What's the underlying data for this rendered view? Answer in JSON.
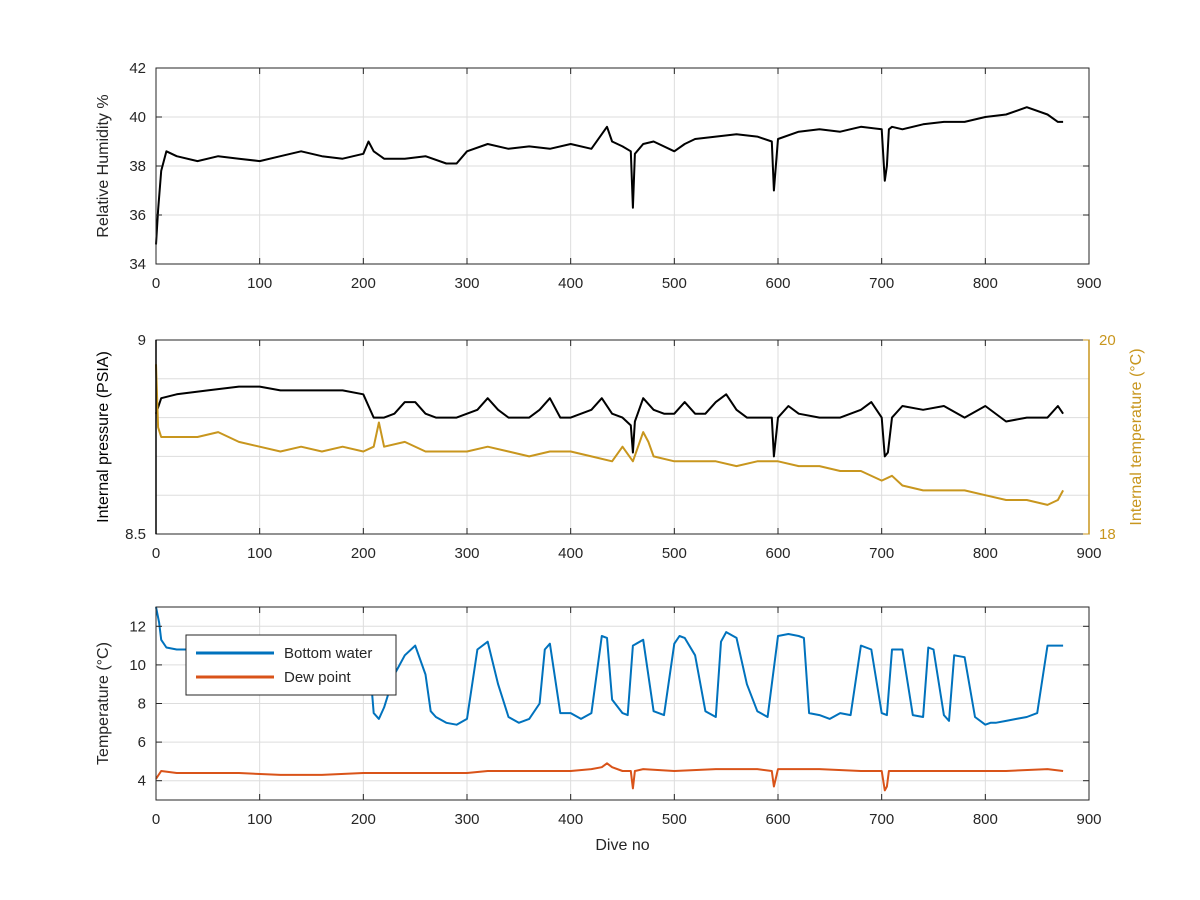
{
  "figure": {
    "background": "#ffffff"
  },
  "colors": {
    "black": "#000000",
    "orange_axis": "#c8961e",
    "blue": "#0072bd",
    "red": "#d95319",
    "grid": "#dddddd",
    "axis": "#262626",
    "label": "#262626"
  },
  "chart_data": [
    {
      "type": "line",
      "panel": "humidity",
      "xlim": [
        0,
        900
      ],
      "ylim": [
        34,
        42
      ],
      "xticks": [
        "0",
        "100",
        "200",
        "300",
        "400",
        "500",
        "600",
        "700",
        "800",
        "900"
      ],
      "yticks": [
        "34",
        "36",
        "38",
        "40",
        "42"
      ],
      "xlabel": "",
      "ylabel": "Relative Humidity %",
      "grid": true,
      "series": [
        {
          "color": "#000000",
          "x": [
            0,
            2,
            5,
            10,
            20,
            40,
            60,
            80,
            100,
            120,
            140,
            160,
            180,
            200,
            205,
            210,
            220,
            240,
            260,
            280,
            290,
            300,
            320,
            340,
            360,
            380,
            400,
            420,
            435,
            440,
            450,
            458,
            460,
            462,
            470,
            480,
            500,
            510,
            520,
            540,
            560,
            580,
            594,
            596,
            600,
            620,
            640,
            660,
            680,
            700,
            703,
            705,
            707,
            710,
            720,
            740,
            760,
            780,
            800,
            820,
            840,
            860,
            870,
            875
          ],
          "y": [
            34.8,
            36.2,
            37.8,
            38.6,
            38.4,
            38.2,
            38.4,
            38.3,
            38.2,
            38.4,
            38.6,
            38.4,
            38.3,
            38.5,
            39.0,
            38.6,
            38.3,
            38.3,
            38.4,
            38.1,
            38.1,
            38.6,
            38.9,
            38.7,
            38.8,
            38.7,
            38.9,
            38.7,
            39.6,
            39.0,
            38.8,
            38.6,
            36.3,
            38.5,
            38.9,
            39.0,
            38.6,
            38.9,
            39.1,
            39.2,
            39.3,
            39.2,
            39.0,
            37.0,
            39.1,
            39.4,
            39.5,
            39.4,
            39.6,
            39.5,
            37.4,
            38.0,
            39.5,
            39.6,
            39.5,
            39.7,
            39.8,
            39.8,
            40.0,
            40.1,
            40.4,
            40.1,
            39.8,
            39.8
          ]
        }
      ]
    },
    {
      "type": "line",
      "panel": "pressure",
      "xlim": [
        0,
        900
      ],
      "ylim": [
        8.5,
        9
      ],
      "ylim_right": [
        18,
        20
      ],
      "xticks": [
        "0",
        "100",
        "200",
        "300",
        "400",
        "500",
        "600",
        "700",
        "800",
        "900"
      ],
      "yticks": [
        "8.5",
        "9"
      ],
      "yticks_right": [
        "18",
        "20"
      ],
      "xlabel": "",
      "ylabel": "Internal pressure (PSIA)",
      "ylabel_right": "Internal temperature (°C)",
      "grid": true,
      "series": [
        {
          "color": "#000000",
          "axis": "left",
          "x": [
            0,
            5,
            20,
            50,
            80,
            100,
            120,
            150,
            180,
            200,
            210,
            220,
            230,
            240,
            250,
            260,
            270,
            290,
            310,
            320,
            330,
            340,
            360,
            370,
            380,
            390,
            400,
            420,
            430,
            440,
            450,
            458,
            460,
            462,
            470,
            480,
            490,
            500,
            510,
            520,
            530,
            540,
            550,
            560,
            570,
            580,
            594,
            596,
            600,
            610,
            620,
            640,
            660,
            680,
            690,
            700,
            703,
            706,
            710,
            720,
            740,
            760,
            780,
            800,
            820,
            840,
            860,
            870,
            875
          ],
          "y": [
            8.81,
            8.85,
            8.86,
            8.87,
            8.88,
            8.88,
            8.87,
            8.87,
            8.87,
            8.86,
            8.8,
            8.8,
            8.81,
            8.84,
            8.84,
            8.81,
            8.8,
            8.8,
            8.82,
            8.85,
            8.82,
            8.8,
            8.8,
            8.82,
            8.85,
            8.8,
            8.8,
            8.82,
            8.85,
            8.81,
            8.8,
            8.78,
            8.71,
            8.79,
            8.85,
            8.82,
            8.81,
            8.81,
            8.84,
            8.81,
            8.81,
            8.84,
            8.86,
            8.82,
            8.8,
            8.8,
            8.8,
            8.7,
            8.8,
            8.83,
            8.81,
            8.8,
            8.8,
            8.82,
            8.84,
            8.8,
            8.7,
            8.71,
            8.8,
            8.83,
            8.82,
            8.83,
            8.8,
            8.83,
            8.79,
            8.8,
            8.8,
            8.83,
            8.81
          ]
        },
        {
          "color": "#c8961e",
          "axis": "right",
          "x": [
            0,
            2,
            5,
            20,
            40,
            60,
            80,
            100,
            120,
            140,
            160,
            180,
            200,
            210,
            215,
            220,
            240,
            260,
            280,
            300,
            320,
            340,
            360,
            380,
            400,
            420,
            440,
            450,
            460,
            470,
            475,
            480,
            500,
            520,
            540,
            560,
            580,
            600,
            620,
            640,
            660,
            680,
            700,
            710,
            720,
            740,
            760,
            780,
            800,
            820,
            840,
            860,
            870,
            875
          ],
          "y": [
            19.75,
            19.1,
            19.0,
            19.0,
            19.0,
            19.05,
            18.95,
            18.9,
            18.85,
            18.9,
            18.85,
            18.9,
            18.85,
            18.9,
            19.15,
            18.9,
            18.95,
            18.85,
            18.85,
            18.85,
            18.9,
            18.85,
            18.8,
            18.85,
            18.85,
            18.8,
            18.75,
            18.9,
            18.75,
            19.05,
            18.95,
            18.8,
            18.75,
            18.75,
            18.75,
            18.7,
            18.75,
            18.75,
            18.7,
            18.7,
            18.65,
            18.65,
            18.55,
            18.6,
            18.5,
            18.45,
            18.45,
            18.45,
            18.4,
            18.35,
            18.35,
            18.3,
            18.35,
            18.45
          ]
        }
      ]
    },
    {
      "type": "line",
      "panel": "temperature",
      "xlim": [
        0,
        900
      ],
      "ylim": [
        3,
        13
      ],
      "xticks": [
        "0",
        "100",
        "200",
        "300",
        "400",
        "500",
        "600",
        "700",
        "800",
        "900"
      ],
      "yticks": [
        "4",
        "6",
        "8",
        "10",
        "12"
      ],
      "xlabel": "Dive no",
      "ylabel": "Temperature (°C)",
      "legend_position": "top-left",
      "grid": true,
      "series": [
        {
          "name": "Bottom water",
          "color": "#0072bd",
          "x": [
            0,
            3,
            5,
            10,
            20,
            40,
            80,
            120,
            160,
            200,
            205,
            210,
            215,
            220,
            230,
            240,
            250,
            260,
            265,
            270,
            280,
            290,
            300,
            310,
            320,
            330,
            340,
            350,
            360,
            370,
            375,
            380,
            390,
            400,
            410,
            420,
            430,
            435,
            440,
            450,
            455,
            460,
            470,
            480,
            490,
            500,
            505,
            510,
            520,
            530,
            540,
            545,
            550,
            560,
            570,
            580,
            590,
            600,
            610,
            620,
            625,
            630,
            640,
            650,
            660,
            670,
            680,
            690,
            700,
            705,
            710,
            720,
            730,
            740,
            745,
            750,
            760,
            765,
            770,
            780,
            790,
            800,
            805,
            810,
            820,
            830,
            840,
            850,
            860,
            865,
            870,
            875
          ],
          "y": [
            13.0,
            12.2,
            11.3,
            10.9,
            10.8,
            10.8,
            10.8,
            10.8,
            10.8,
            10.8,
            10.8,
            7.5,
            7.2,
            7.8,
            9.5,
            10.5,
            11.0,
            9.5,
            7.6,
            7.3,
            7.0,
            6.9,
            7.2,
            10.8,
            11.2,
            9.0,
            7.3,
            7.0,
            7.2,
            8.0,
            10.8,
            11.1,
            7.5,
            7.5,
            7.2,
            7.5,
            11.5,
            11.4,
            8.2,
            7.5,
            7.4,
            11.0,
            11.3,
            7.6,
            7.4,
            11.1,
            11.5,
            11.4,
            10.5,
            7.6,
            7.3,
            11.2,
            11.7,
            11.4,
            9.0,
            7.6,
            7.3,
            11.5,
            11.6,
            11.5,
            11.4,
            7.5,
            7.4,
            7.2,
            7.5,
            7.4,
            11.0,
            10.8,
            7.5,
            7.4,
            10.8,
            10.8,
            7.4,
            7.3,
            10.9,
            10.8,
            7.4,
            7.1,
            10.5,
            10.4,
            7.3,
            6.9,
            7.0,
            7.0,
            7.1,
            7.2,
            7.3,
            7.5,
            11.0,
            11.0,
            11.0,
            11.0
          ]
        },
        {
          "name": "Dew point",
          "color": "#d95319",
          "x": [
            0,
            5,
            20,
            40,
            80,
            120,
            160,
            200,
            240,
            280,
            300,
            320,
            360,
            400,
            420,
            430,
            435,
            440,
            450,
            458,
            460,
            462,
            470,
            500,
            540,
            580,
            594,
            596,
            600,
            640,
            680,
            700,
            703,
            705,
            707,
            710,
            740,
            780,
            820,
            860,
            875
          ],
          "y": [
            4.1,
            4.5,
            4.4,
            4.4,
            4.4,
            4.3,
            4.3,
            4.4,
            4.4,
            4.4,
            4.4,
            4.5,
            4.5,
            4.5,
            4.6,
            4.7,
            4.9,
            4.7,
            4.5,
            4.5,
            3.6,
            4.5,
            4.6,
            4.5,
            4.6,
            4.6,
            4.5,
            3.7,
            4.6,
            4.6,
            4.5,
            4.5,
            3.5,
            3.7,
            4.5,
            4.5,
            4.5,
            4.5,
            4.5,
            4.6,
            4.5
          ]
        }
      ]
    }
  ]
}
